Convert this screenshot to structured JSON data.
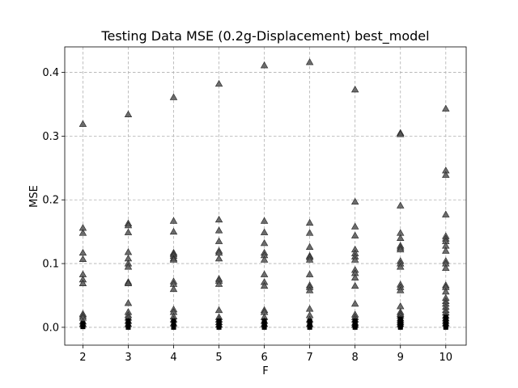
{
  "chart_data": {
    "type": "scatter",
    "title": "Testing Data MSE (0.2g-Displacement) best_model",
    "xlabel": "F",
    "ylabel": "MSE",
    "xlim": [
      1.6,
      10.45
    ],
    "ylim": [
      -0.028,
      0.44
    ],
    "xticks": [
      2,
      3,
      4,
      5,
      6,
      7,
      8,
      9,
      10
    ],
    "yticks": [
      0.0,
      0.1,
      0.2,
      0.3,
      0.4
    ],
    "ytick_labels": [
      "0.0",
      "0.1",
      "0.2",
      "0.3",
      "0.4"
    ],
    "grid": true,
    "legend": "none",
    "series": [
      {
        "marker": "triangle",
        "color": "#555555",
        "points": [
          [
            2,
            0.319
          ],
          [
            2,
            0.156
          ],
          [
            2,
            0.148
          ],
          [
            2,
            0.117
          ],
          [
            2,
            0.107
          ],
          [
            2,
            0.083
          ],
          [
            2,
            0.075
          ],
          [
            2,
            0.069
          ],
          [
            2,
            0.021
          ],
          [
            2,
            0.018
          ],
          [
            2,
            0.015
          ],
          [
            2,
            0.009
          ],
          [
            2,
            0.005
          ],
          [
            3,
            0.334
          ],
          [
            3,
            0.163
          ],
          [
            3,
            0.16
          ],
          [
            3,
            0.149
          ],
          [
            3,
            0.118
          ],
          [
            3,
            0.108
          ],
          [
            3,
            0.1
          ],
          [
            3,
            0.095
          ],
          [
            3,
            0.071
          ],
          [
            3,
            0.069
          ],
          [
            3,
            0.038
          ],
          [
            3,
            0.024
          ],
          [
            3,
            0.019
          ],
          [
            3,
            0.015
          ],
          [
            3,
            0.01
          ],
          [
            3,
            0.005
          ],
          [
            4,
            0.361
          ],
          [
            4,
            0.167
          ],
          [
            4,
            0.15
          ],
          [
            4,
            0.117
          ],
          [
            4,
            0.115
          ],
          [
            4,
            0.112
          ],
          [
            4,
            0.108
          ],
          [
            4,
            0.106
          ],
          [
            4,
            0.072
          ],
          [
            4,
            0.068
          ],
          [
            4,
            0.06
          ],
          [
            4,
            0.028
          ],
          [
            4,
            0.024
          ],
          [
            4,
            0.017
          ],
          [
            4,
            0.012
          ],
          [
            4,
            0.006
          ],
          [
            5,
            0.382
          ],
          [
            5,
            0.169
          ],
          [
            5,
            0.152
          ],
          [
            5,
            0.135
          ],
          [
            5,
            0.12
          ],
          [
            5,
            0.117
          ],
          [
            5,
            0.108
          ],
          [
            5,
            0.076
          ],
          [
            5,
            0.073
          ],
          [
            5,
            0.068
          ],
          [
            5,
            0.027
          ],
          [
            5,
            0.016
          ],
          [
            5,
            0.012
          ],
          [
            5,
            0.008
          ],
          [
            5,
            0.004
          ],
          [
            6,
            0.411
          ],
          [
            6,
            0.167
          ],
          [
            6,
            0.149
          ],
          [
            6,
            0.132
          ],
          [
            6,
            0.117
          ],
          [
            6,
            0.113
          ],
          [
            6,
            0.106
          ],
          [
            6,
            0.083
          ],
          [
            6,
            0.071
          ],
          [
            6,
            0.065
          ],
          [
            6,
            0.027
          ],
          [
            6,
            0.024
          ],
          [
            6,
            0.016
          ],
          [
            6,
            0.01
          ],
          [
            6,
            0.005
          ],
          [
            7,
            0.416
          ],
          [
            7,
            0.164
          ],
          [
            7,
            0.148
          ],
          [
            7,
            0.126
          ],
          [
            7,
            0.112
          ],
          [
            7,
            0.11
          ],
          [
            7,
            0.106
          ],
          [
            7,
            0.083
          ],
          [
            7,
            0.066
          ],
          [
            7,
            0.063
          ],
          [
            7,
            0.058
          ],
          [
            7,
            0.029
          ],
          [
            7,
            0.019
          ],
          [
            7,
            0.012
          ],
          [
            7,
            0.005
          ],
          [
            8,
            0.373
          ],
          [
            8,
            0.197
          ],
          [
            8,
            0.158
          ],
          [
            8,
            0.144
          ],
          [
            8,
            0.122
          ],
          [
            8,
            0.116
          ],
          [
            8,
            0.111
          ],
          [
            8,
            0.106
          ],
          [
            8,
            0.09
          ],
          [
            8,
            0.085
          ],
          [
            8,
            0.078
          ],
          [
            8,
            0.065
          ],
          [
            8,
            0.037
          ],
          [
            8,
            0.02
          ],
          [
            8,
            0.016
          ],
          [
            8,
            0.012
          ],
          [
            8,
            0.007
          ],
          [
            8,
            0.004
          ],
          [
            9,
            0.305
          ],
          [
            9,
            0.303
          ],
          [
            9,
            0.191
          ],
          [
            9,
            0.148
          ],
          [
            9,
            0.14
          ],
          [
            9,
            0.128
          ],
          [
            9,
            0.125
          ],
          [
            9,
            0.122
          ],
          [
            9,
            0.104
          ],
          [
            9,
            0.1
          ],
          [
            9,
            0.095
          ],
          [
            9,
            0.067
          ],
          [
            9,
            0.063
          ],
          [
            9,
            0.058
          ],
          [
            9,
            0.033
          ],
          [
            9,
            0.024
          ],
          [
            9,
            0.021
          ],
          [
            9,
            0.018
          ],
          [
            9,
            0.014
          ],
          [
            9,
            0.011
          ],
          [
            9,
            0.008
          ],
          [
            9,
            0.005
          ],
          [
            10,
            0.343
          ],
          [
            10,
            0.246
          ],
          [
            10,
            0.239
          ],
          [
            10,
            0.177
          ],
          [
            10,
            0.143
          ],
          [
            10,
            0.139
          ],
          [
            10,
            0.135
          ],
          [
            10,
            0.128
          ],
          [
            10,
            0.12
          ],
          [
            10,
            0.104
          ],
          [
            10,
            0.1
          ],
          [
            10,
            0.093
          ],
          [
            10,
            0.066
          ],
          [
            10,
            0.063
          ],
          [
            10,
            0.056
          ],
          [
            10,
            0.046
          ],
          [
            10,
            0.041
          ],
          [
            10,
            0.037
          ],
          [
            10,
            0.032
          ],
          [
            10,
            0.027
          ],
          [
            10,
            0.023
          ],
          [
            10,
            0.018
          ],
          [
            10,
            0.014
          ],
          [
            10,
            0.01
          ],
          [
            10,
            0.006
          ]
        ]
      },
      {
        "marker": "square",
        "color": "#000000",
        "points": [
          [
            2,
            0.001
          ],
          [
            2,
            0.003
          ],
          [
            2,
            0.006
          ],
          [
            3,
            0.0
          ],
          [
            3,
            0.002
          ],
          [
            3,
            0.004
          ],
          [
            3,
            0.007
          ],
          [
            3,
            0.01
          ],
          [
            4,
            0.0
          ],
          [
            4,
            0.002
          ],
          [
            4,
            0.004
          ],
          [
            4,
            0.007
          ],
          [
            4,
            0.01
          ],
          [
            5,
            0.0
          ],
          [
            5,
            0.002
          ],
          [
            5,
            0.004
          ],
          [
            5,
            0.007
          ],
          [
            5,
            0.01
          ],
          [
            6,
            0.0
          ],
          [
            6,
            0.002
          ],
          [
            6,
            0.004
          ],
          [
            6,
            0.007
          ],
          [
            6,
            0.01
          ],
          [
            7,
            0.0
          ],
          [
            7,
            0.002
          ],
          [
            7,
            0.004
          ],
          [
            7,
            0.007
          ],
          [
            7,
            0.01
          ],
          [
            8,
            0.0
          ],
          [
            8,
            0.002
          ],
          [
            8,
            0.004
          ],
          [
            8,
            0.007
          ],
          [
            8,
            0.01
          ],
          [
            9,
            0.0
          ],
          [
            9,
            0.002
          ],
          [
            9,
            0.004
          ],
          [
            9,
            0.007
          ],
          [
            9,
            0.01
          ],
          [
            9,
            0.013
          ],
          [
            10,
            0.0
          ],
          [
            10,
            0.002
          ],
          [
            10,
            0.004
          ],
          [
            10,
            0.007
          ],
          [
            10,
            0.01
          ],
          [
            10,
            0.013
          ],
          [
            10,
            0.016
          ]
        ]
      }
    ]
  }
}
